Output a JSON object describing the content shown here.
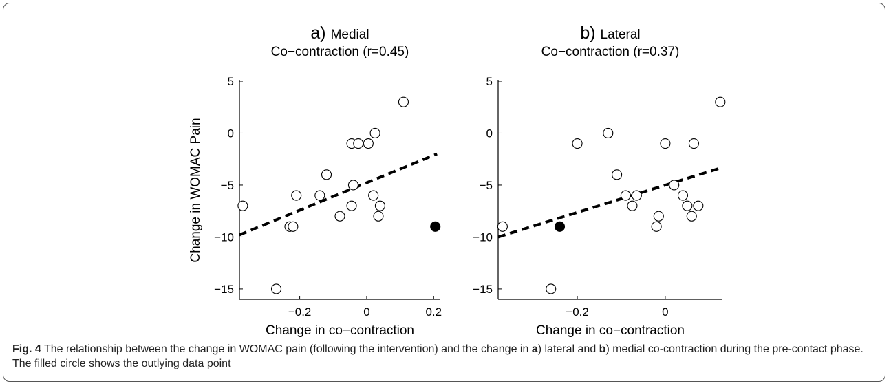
{
  "figure": {
    "caption_label": "Fig. 4",
    "caption_part1": " The relationship between the change in WOMAC pain (following the intervention) and the change in ",
    "caption_a": "a",
    "caption_part2": ") lateral and ",
    "caption_b": "b",
    "caption_part3": ") medial co-contraction during the pre-contact phase. The filled circle shows the outlying data point"
  },
  "chart_data": [
    {
      "type": "scatter",
      "panel_label": "a)",
      "title": "Medial",
      "subtitle": "Co−contraction (r=0.45)",
      "xlabel": "Change in co−contraction",
      "ylabel": "Change in WOMAC Pain",
      "xlim": [
        -0.38,
        0.22
      ],
      "ylim": [
        -16,
        5
      ],
      "xticks": [
        -0.2,
        0,
        0.2
      ],
      "xtick_labels": [
        "−0.2",
        "0",
        "0.2"
      ],
      "yticks": [
        5,
        0,
        -5,
        -10,
        -15
      ],
      "ytick_labels": [
        "5",
        "0",
        "−5",
        "−10",
        "−15"
      ],
      "points": [
        {
          "x": -0.37,
          "y": -7
        },
        {
          "x": -0.27,
          "y": -15
        },
        {
          "x": -0.23,
          "y": -9
        },
        {
          "x": -0.22,
          "y": -9
        },
        {
          "x": -0.21,
          "y": -6
        },
        {
          "x": -0.14,
          "y": -6
        },
        {
          "x": -0.12,
          "y": -4
        },
        {
          "x": -0.08,
          "y": -8
        },
        {
          "x": -0.045,
          "y": -7
        },
        {
          "x": -0.045,
          "y": -1
        },
        {
          "x": -0.04,
          "y": -5
        },
        {
          "x": -0.025,
          "y": -1
        },
        {
          "x": 0.005,
          "y": -1
        },
        {
          "x": 0.02,
          "y": -6
        },
        {
          "x": 0.025,
          "y": 0
        },
        {
          "x": 0.035,
          "y": -8
        },
        {
          "x": 0.04,
          "y": -7
        },
        {
          "x": 0.11,
          "y": 3
        }
      ],
      "outlier": {
        "x": 0.205,
        "y": -9
      },
      "fit_line": {
        "x": [
          -0.38,
          0.21
        ],
        "y": [
          -9.8,
          -2.0
        ]
      }
    },
    {
      "type": "scatter",
      "panel_label": "b)",
      "title": "Lateral",
      "subtitle": "Co−contraction (r=0.37)",
      "xlabel": "Change in co−contraction",
      "ylabel": "",
      "xlim": [
        -0.38,
        0.13
      ],
      "ylim": [
        -16,
        5
      ],
      "xticks": [
        -0.2,
        0
      ],
      "xtick_labels": [
        "−0.2",
        "0"
      ],
      "yticks": [
        5,
        0,
        -5,
        -10,
        -15
      ],
      "ytick_labels": [
        "5",
        "0",
        "−5",
        "−10",
        "−15"
      ],
      "points": [
        {
          "x": -0.37,
          "y": -9
        },
        {
          "x": -0.26,
          "y": -15
        },
        {
          "x": -0.2,
          "y": -1
        },
        {
          "x": -0.13,
          "y": 0
        },
        {
          "x": -0.11,
          "y": -4
        },
        {
          "x": -0.09,
          "y": -6
        },
        {
          "x": -0.075,
          "y": -7
        },
        {
          "x": -0.065,
          "y": -6
        },
        {
          "x": -0.02,
          "y": -9
        },
        {
          "x": -0.015,
          "y": -8
        },
        {
          "x": 0.0,
          "y": -1
        },
        {
          "x": 0.02,
          "y": -5
        },
        {
          "x": 0.04,
          "y": -6
        },
        {
          "x": 0.05,
          "y": -7
        },
        {
          "x": 0.06,
          "y": -8
        },
        {
          "x": 0.065,
          "y": -1
        },
        {
          "x": 0.075,
          "y": -7
        },
        {
          "x": 0.125,
          "y": 3
        }
      ],
      "outlier": {
        "x": -0.24,
        "y": -9
      },
      "fit_line": {
        "x": [
          -0.38,
          0.13
        ],
        "y": [
          -10.0,
          -3.3
        ]
      }
    }
  ]
}
